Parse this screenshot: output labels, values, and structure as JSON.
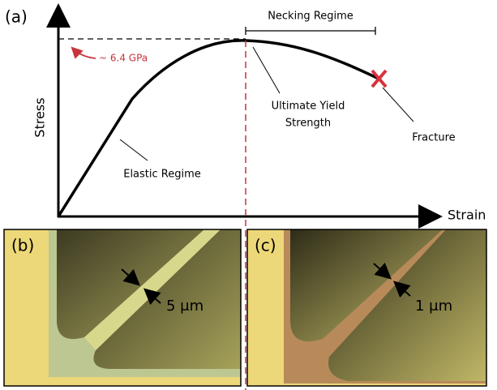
{
  "panel_a": {
    "label": "(a)",
    "y_axis_label": "Stress",
    "x_axis_label": "Strain",
    "annotations": {
      "necking": "Necking Regime",
      "yield_value": "~ 6.4 GPa",
      "ultimate": [
        "Ultimate Yield",
        "Strength"
      ],
      "fracture": "Fracture",
      "elastic": "Elastic Regime"
    }
  },
  "panel_b": {
    "label": "(b)",
    "width_label": "5 μm"
  },
  "panel_c": {
    "label": "(c)",
    "width_label": "1 μm"
  }
}
